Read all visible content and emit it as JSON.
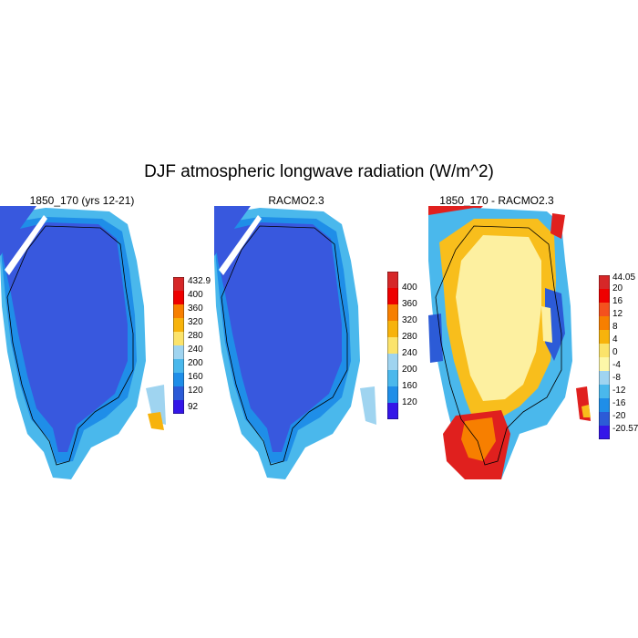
{
  "title": "DJF atmospheric longwave radiation (W/m^2)",
  "panels": [
    {
      "title": "1850_170 (yrs 12-21)",
      "colorbar": {
        "labels": [
          "432.9",
          "400",
          "360",
          "320",
          "280",
          "240",
          "200",
          "160",
          "120",
          "92"
        ],
        "colors": [
          "#d62728",
          "#ee0000",
          "#f77f00",
          "#f7b30c",
          "#fbe36b",
          "#9fd4f0",
          "#4ab8ec",
          "#1f8ee8",
          "#2c5bd7",
          "#3416e8"
        ]
      }
    },
    {
      "title": "RACMO2.3",
      "colorbar": {
        "labels": [
          "400",
          "360",
          "320",
          "280",
          "240",
          "200",
          "160",
          "120"
        ],
        "colors": [
          "#d62728",
          "#ee0000",
          "#f77f00",
          "#f7b30c",
          "#fbe36b",
          "#9fd4f0",
          "#4ab8ec",
          "#1f8ee8",
          "#3416e8"
        ]
      }
    },
    {
      "title": "1850_170 - RACMO2.3",
      "colorbar": {
        "labels": [
          "44.05",
          "20",
          "16",
          "12",
          "8",
          "4",
          "0",
          "-4",
          "-8",
          "-12",
          "-16",
          "-20",
          "-20.57"
        ],
        "colors": [
          "#d62728",
          "#ee0000",
          "#f4511e",
          "#f77f00",
          "#f7b30c",
          "#fbe36b",
          "#fdf7a8",
          "#9fd4f0",
          "#4ab8ec",
          "#1f8ee8",
          "#2c5bd7",
          "#3416e8"
        ]
      }
    }
  ],
  "palette": {
    "ice_interior": "#3858de",
    "coast_light": "#9fd4f0",
    "coast_mid": "#4ab8ec",
    "diff_yellow": "#fdf0a0",
    "diff_orange": "#f8be1c",
    "diff_red": "#e0201e"
  }
}
